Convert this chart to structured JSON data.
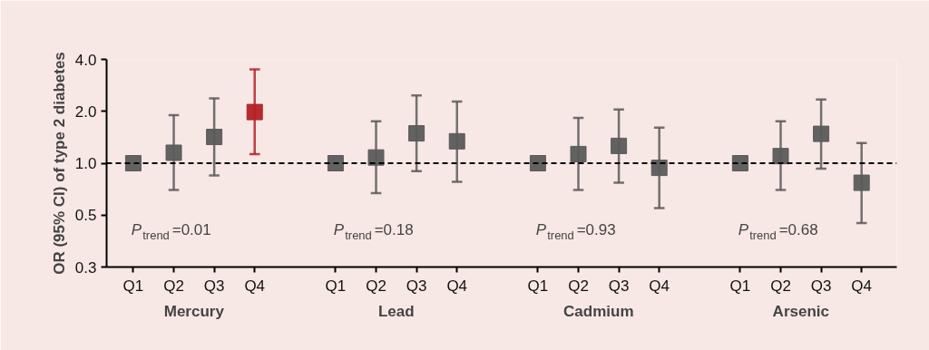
{
  "chart_data": {
    "type": "scatter",
    "ylabel": "OR (95% CI) of type 2 diabetes",
    "categories": [
      "Q1",
      "Q2",
      "Q3",
      "Q4",
      null,
      "Q1",
      "Q2",
      "Q3",
      "Q4",
      null,
      "Q1",
      "Q2",
      "Q3",
      "Q4",
      null,
      "Q1",
      "Q2",
      "Q3",
      "Q4"
    ],
    "values": [
      1.0,
      1.15,
      1.42,
      1.98,
      null,
      1.0,
      1.08,
      1.49,
      1.34,
      null,
      1.0,
      1.13,
      1.26,
      0.94,
      null,
      1.0,
      1.1,
      1.48,
      0.77
    ],
    "errors": [
      null,
      [
        0.7,
        1.9
      ],
      [
        0.85,
        2.38
      ],
      [
        1.13,
        3.5
      ],
      null,
      null,
      [
        0.67,
        1.75
      ],
      [
        0.9,
        2.47
      ],
      [
        0.78,
        2.28
      ],
      null,
      null,
      [
        0.7,
        1.83
      ],
      [
        0.77,
        2.05
      ],
      [
        0.55,
        1.61
      ],
      null,
      null,
      [
        0.7,
        1.75
      ],
      [
        0.93,
        2.34
      ],
      [
        0.45,
        1.31
      ]
    ],
    "colors": [
      "#5b5b5b",
      "#5b5b5b",
      "#5b5b5b",
      "#b22126",
      null,
      "#5b5b5b",
      "#5b5b5b",
      "#5b5b5b",
      "#5b5b5b",
      null,
      "#5b5b5b",
      "#5b5b5b",
      "#5b5b5b",
      "#5b5b5b",
      null,
      "#5b5b5b",
      "#5b5b5b",
      "#5b5b5b",
      "#5b5b5b"
    ],
    "marker": "square",
    "log": "y",
    "ylim": [
      0.25,
      4.0
    ],
    "yticks": [
      {
        "value": 0.25,
        "label": "0.3"
      },
      0.5,
      {
        "value": 1.0,
        "label": "1.0"
      },
      {
        "value": 2.0,
        "label": "2.0"
      },
      {
        "value": 4.0,
        "label": "4.0"
      }
    ],
    "ref_lines": [
      {
        "axis": "y",
        "value": 1.0,
        "line_style": "dashed",
        "color": "#000000"
      }
    ],
    "annotations": [
      "Mercury",
      "Lead",
      "Cadmium",
      "Arsenic",
      "P$_{trend}$=0.01",
      "P$_{trend}$=0.18",
      "P$_{trend}$=0.93",
      "P$_{trend}$=0.68"
    ]
  }
}
